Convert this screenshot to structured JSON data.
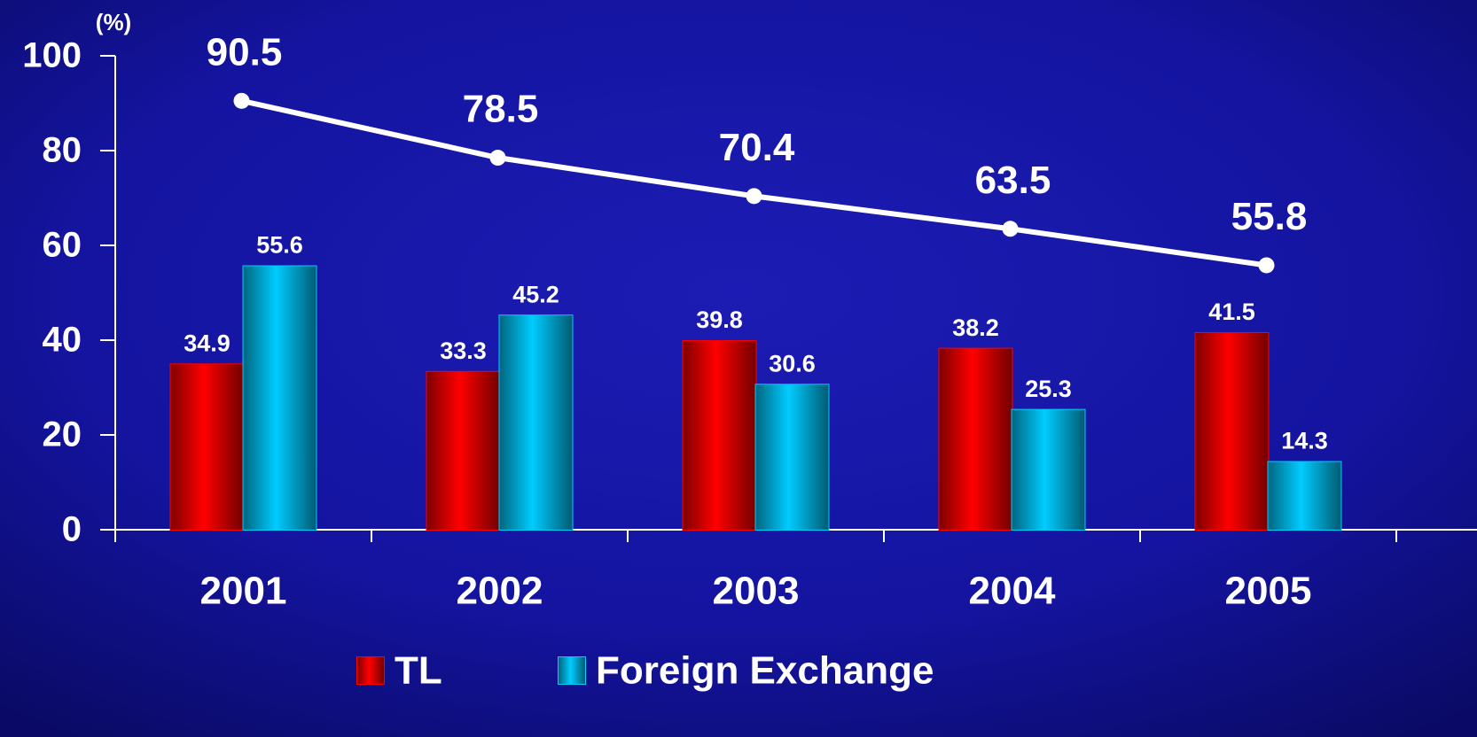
{
  "chart_data": {
    "type": "bar",
    "y_label": "(%)",
    "categories": [
      "2001",
      "2002",
      "2003",
      "2004",
      "2005"
    ],
    "series": [
      {
        "name": "TL",
        "type": "bar",
        "color": "#ff0000",
        "values": [
          34.9,
          33.3,
          39.8,
          38.2,
          41.5
        ]
      },
      {
        "name": "Foreign Exchange",
        "type": "bar",
        "color": "#00ccff",
        "values": [
          55.6,
          45.2,
          30.6,
          25.3,
          14.3
        ]
      },
      {
        "type": "line",
        "color": "#ffffff",
        "values": [
          90.5,
          78.5,
          70.4,
          63.5,
          55.8
        ]
      }
    ],
    "ylim": [
      0,
      100
    ],
    "yticks": [
      0,
      20,
      40,
      60,
      80,
      100
    ]
  }
}
